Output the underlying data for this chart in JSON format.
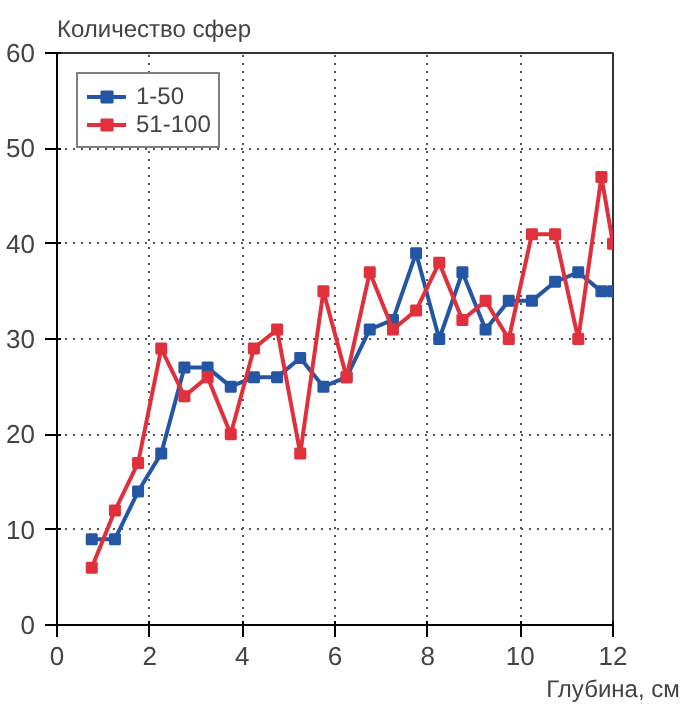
{
  "chart_data": {
    "type": "line",
    "ylabel": "Количество сфер",
    "xlabel": "Глубина, см",
    "xlim": [
      0,
      12
    ],
    "ylim": [
      0,
      60
    ],
    "xticks": [
      0,
      2,
      4,
      6,
      8,
      10,
      12
    ],
    "yticks": [
      0,
      10,
      20,
      30,
      40,
      50,
      60
    ],
    "grid": true,
    "legend": "top left",
    "marker": "square",
    "line_style": "solid",
    "x": [
      0.75,
      1.25,
      1.75,
      2.25,
      2.75,
      3.25,
      3.75,
      4.25,
      4.75,
      5.25,
      5.75,
      6.25,
      6.75,
      7.25,
      7.75,
      8.25,
      8.75,
      9.25,
      9.75,
      10.25,
      10.75,
      11.25,
      11.75,
      12
    ],
    "series": [
      {
        "name": "1-50",
        "color": "#2456a4",
        "values": [
          9,
          9,
          14,
          18,
          27,
          27,
          25,
          26,
          26,
          28,
          25,
          26,
          31,
          32,
          39,
          30,
          37,
          31,
          34,
          34,
          36,
          37,
          35,
          35
        ]
      },
      {
        "name": "51-100",
        "color": "#e0303c",
        "values": [
          6,
          12,
          17,
          29,
          24,
          26,
          20,
          29,
          31,
          18,
          35,
          26,
          37,
          31,
          33,
          38,
          32,
          34,
          30,
          41,
          41,
          30,
          47,
          40
        ]
      }
    ]
  }
}
